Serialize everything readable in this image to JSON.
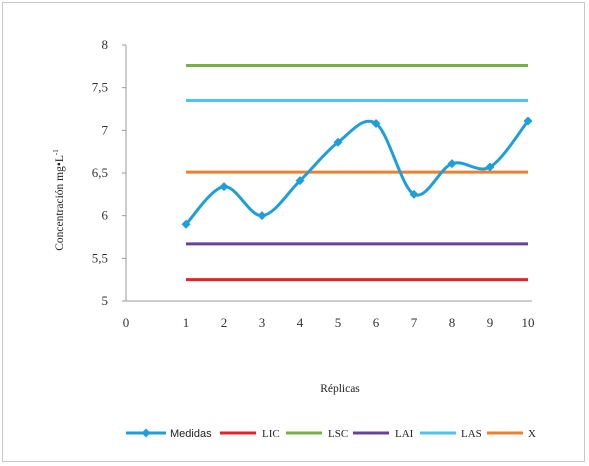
{
  "chart_data": {
    "type": "line",
    "title": "",
    "xlabel": "Réplicas",
    "ylabel": "Concentración mg•L",
    "ylabel_sup": "-1",
    "x_tick_labels": [
      "0",
      "1",
      "2",
      "3",
      "4",
      "5",
      "6",
      "7",
      "8",
      "9",
      "10"
    ],
    "y_tick_labels": [
      "5",
      "5,5",
      "6",
      "6,5",
      "7",
      "7,5",
      "8"
    ],
    "ylim": [
      5,
      8
    ],
    "xlim": [
      0,
      10
    ],
    "grid": false,
    "legend_position": "bottom",
    "series": [
      {
        "name": "Medidas",
        "color": "#1f9fd9",
        "marker": "diamond",
        "smooth": true,
        "x": [
          1,
          2,
          3,
          4,
          5,
          6,
          7,
          8,
          9,
          10
        ],
        "values": [
          5.9,
          6.34,
          6.0,
          6.41,
          6.86,
          7.08,
          6.25,
          6.61,
          6.57,
          7.11
        ]
      },
      {
        "name": "LIC",
        "color": "#e8202a",
        "x": [
          1,
          10
        ],
        "values": [
          5.25,
          5.25
        ]
      },
      {
        "name": "LSC",
        "color": "#77b043",
        "x": [
          1,
          10
        ],
        "values": [
          7.76,
          7.76
        ]
      },
      {
        "name": "LAI",
        "color": "#6a3f9e",
        "x": [
          1,
          10
        ],
        "values": [
          5.67,
          5.67
        ]
      },
      {
        "name": "LAS",
        "color": "#4fc3f0",
        "x": [
          1,
          10
        ],
        "values": [
          7.35,
          7.35
        ]
      },
      {
        "name": "X",
        "color": "#ef7f2c",
        "x": [
          1,
          10
        ],
        "values": [
          6.51,
          6.51
        ]
      }
    ]
  }
}
